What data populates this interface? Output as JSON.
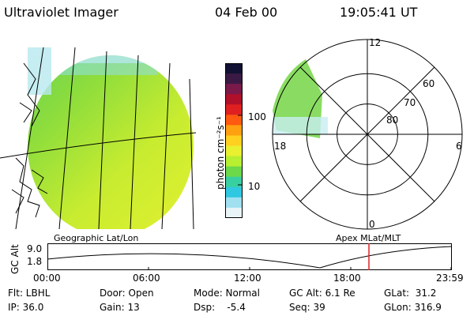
{
  "header": {
    "instrument": "Ultraviolet Imager",
    "date": "04 Feb 00",
    "time": "19:05:41 UT"
  },
  "colorbar": {
    "unit_label": "photon cm⁻²s⁻¹",
    "ticks": [
      "100",
      "10"
    ],
    "colors": [
      "#111133",
      "#3a1a44",
      "#7a1a4a",
      "#b0102a",
      "#e02020",
      "#ff5a10",
      "#ffa010",
      "#ffd020",
      "#e8f030",
      "#b8ef30",
      "#6cd84a",
      "#38d0a0",
      "#30c8e0",
      "#a0e0f0",
      "#e8f4f8"
    ]
  },
  "panels": {
    "left_label": "Geographic Lat/Lon",
    "right_label": "Apex MLat/MLT"
  },
  "polar": {
    "mlt_labels": {
      "top": "12",
      "left": "18",
      "right": "6",
      "bottom": "0"
    },
    "lat_labels": [
      "60",
      "70",
      "80"
    ]
  },
  "altitude_plot": {
    "ylabel": "GC Alt",
    "yticks": [
      "9.0",
      "1.8"
    ],
    "xticks": [
      "00:00",
      "06:00",
      "12:00",
      "18:00",
      "23:59"
    ],
    "marker_color": "#dd2222"
  },
  "footer": {
    "flt": "Flt: LBHL",
    "ip": "IP: 36.0",
    "door": "Door: Open",
    "gain": "Gain: 13",
    "mode": "Mode: Normal",
    "dsp": "Dsp:    -5.4",
    "gc_alt": "GC Alt: 6.1 Re",
    "seq": "Seq: 39",
    "glat": "GLat:  31.2",
    "glon": "GLon: 316.9"
  }
}
